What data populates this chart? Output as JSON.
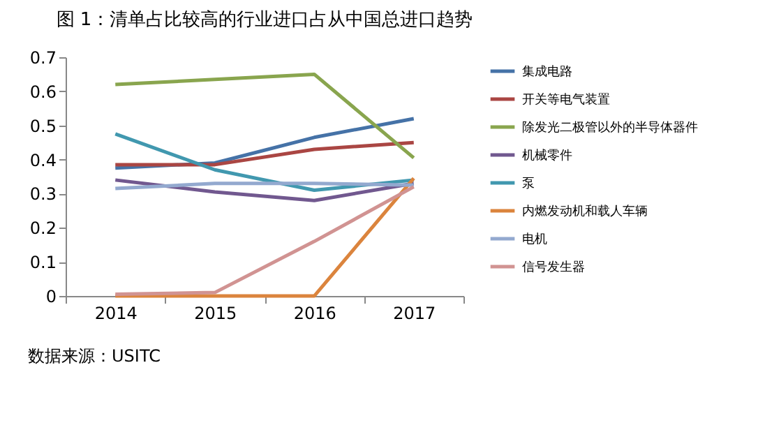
{
  "chart_data": {
    "type": "line",
    "title": "图 1：清单占比较高的行业进口占从中国总进口趋势",
    "categories": [
      "2014",
      "2015",
      "2016",
      "2017"
    ],
    "series": [
      {
        "name": "集成电路",
        "color": "#4572a7",
        "values": [
          0.375,
          0.39,
          0.465,
          0.52
        ]
      },
      {
        "name": "开关等电气装置",
        "color": "#aa4643",
        "values": [
          0.385,
          0.385,
          0.43,
          0.45
        ]
      },
      {
        "name": "除发光二极管以外的半导体器件",
        "color": "#89a54e",
        "values": [
          0.62,
          0.635,
          0.65,
          0.405
        ]
      },
      {
        "name": "机械零件",
        "color": "#71588f",
        "values": [
          0.34,
          0.305,
          0.28,
          0.33
        ]
      },
      {
        "name": "泵",
        "color": "#4198af",
        "values": [
          0.475,
          0.37,
          0.31,
          0.34
        ]
      },
      {
        "name": "内燃发动机和载人车辆",
        "color": "#db843d",
        "values": [
          0,
          0,
          0,
          0.345
        ]
      },
      {
        "name": "电机",
        "color": "#93a9cf",
        "values": [
          0.315,
          0.33,
          0.33,
          0.325
        ]
      },
      {
        "name": "信号发生器",
        "color": "#d19392",
        "values": [
          0.005,
          0.01,
          0.16,
          0.32
        ]
      }
    ],
    "ylim": [
      0,
      0.7
    ],
    "yticks": [
      0,
      0.1,
      0.2,
      0.3,
      0.4,
      0.5,
      0.6,
      0.7
    ],
    "legend": "right",
    "annotations": [
      "数据来源：USITC"
    ]
  }
}
